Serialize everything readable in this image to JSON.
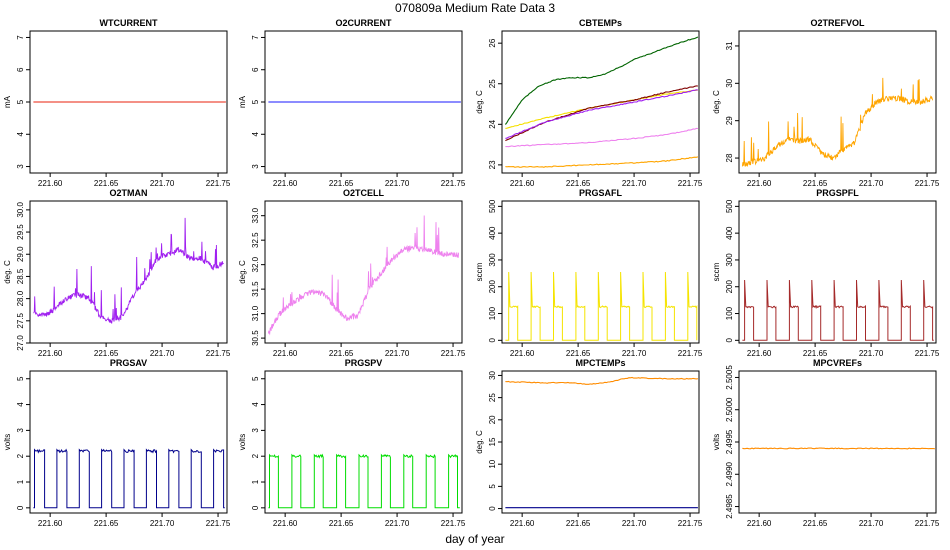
{
  "figure": {
    "title": "070809a   Medium Rate Data 3",
    "xlabel": "day of year"
  },
  "chart_data": [
    {
      "type": "line",
      "title": "WTCURRENT",
      "ylabel": "mA",
      "xlim": [
        221.582,
        221.758
      ],
      "ylim": [
        2.8,
        7.2
      ],
      "xticks": [
        221.6,
        221.65,
        221.7,
        221.75
      ],
      "yticks": [
        3,
        4,
        5,
        6,
        7
      ],
      "series": [
        {
          "name": "WTCURRENT",
          "color": "#e8200c",
          "x": [
            221.585,
            221.757
          ],
          "y": [
            5.0,
            5.0
          ]
        }
      ]
    },
    {
      "type": "line",
      "title": "O2CURRENT",
      "ylabel": "mA",
      "xlim": [
        221.582,
        221.758
      ],
      "ylim": [
        2.8,
        7.2
      ],
      "xticks": [
        221.6,
        221.65,
        221.7,
        221.75
      ],
      "yticks": [
        3,
        4,
        5,
        6,
        7
      ],
      "series": [
        {
          "name": "O2CURRENT",
          "color": "#1a1aff",
          "x": [
            221.585,
            221.757
          ],
          "y": [
            5.0,
            5.0
          ]
        }
      ]
    },
    {
      "type": "line",
      "title": "CBTEMPs",
      "ylabel": "deg. C",
      "xlim": [
        221.582,
        221.758
      ],
      "ylim": [
        22.8,
        26.3
      ],
      "xticks": [
        221.6,
        221.65,
        221.7,
        221.75
      ],
      "yticks": [
        23.0,
        24.0,
        25.0,
        26.0
      ],
      "series": [
        {
          "name": "green",
          "color": "#006400",
          "x": [
            221.585,
            221.6,
            221.615,
            221.63,
            221.645,
            221.66,
            221.675,
            221.69,
            221.7,
            221.715,
            221.73,
            221.745,
            221.757
          ],
          "y": [
            24.0,
            24.6,
            24.95,
            25.1,
            25.15,
            25.15,
            25.25,
            25.45,
            25.6,
            25.75,
            25.9,
            26.05,
            26.15
          ]
        },
        {
          "name": "yellow",
          "color": "#f5e000",
          "x": [
            221.585,
            221.62,
            221.66,
            221.7,
            221.73,
            221.757
          ],
          "y": [
            23.9,
            24.15,
            24.4,
            24.6,
            24.75,
            24.85
          ]
        },
        {
          "name": "maroon",
          "color": "#800000",
          "x": [
            221.585,
            221.62,
            221.66,
            221.7,
            221.73,
            221.757
          ],
          "y": [
            23.6,
            24.05,
            24.4,
            24.6,
            24.8,
            24.95
          ]
        },
        {
          "name": "purple",
          "color": "#a020f0",
          "x": [
            221.585,
            221.62,
            221.66,
            221.7,
            221.73,
            221.757
          ],
          "y": [
            23.65,
            24.05,
            24.35,
            24.55,
            24.7,
            24.85
          ]
        },
        {
          "name": "violet",
          "color": "#ee82ee",
          "x": [
            221.585,
            221.62,
            221.66,
            221.7,
            221.73,
            221.757
          ],
          "y": [
            23.45,
            23.5,
            23.55,
            23.65,
            23.75,
            23.9
          ]
        },
        {
          "name": "orange",
          "color": "#ffa500",
          "x": [
            221.585,
            221.62,
            221.66,
            221.7,
            221.73,
            221.757
          ],
          "y": [
            22.95,
            22.95,
            23.0,
            23.05,
            23.1,
            23.2
          ]
        }
      ]
    },
    {
      "type": "line",
      "title": "O2TREFVOL",
      "ylabel": "deg. C",
      "xlim": [
        221.582,
        221.758
      ],
      "ylim": [
        27.6,
        31.4
      ],
      "xticks": [
        221.6,
        221.65,
        221.7,
        221.75
      ],
      "yticks": [
        28,
        29,
        30,
        31
      ],
      "series": [
        {
          "name": "O2TREFVOL",
          "color": "#ffa500",
          "x": [
            221.585,
            221.595,
            221.605,
            221.615,
            221.625,
            221.635,
            221.645,
            221.655,
            221.665,
            221.675,
            221.685,
            221.695,
            221.705,
            221.715,
            221.725,
            221.735,
            221.745,
            221.755
          ],
          "y": [
            27.8,
            27.9,
            28.0,
            28.3,
            28.5,
            28.45,
            28.5,
            28.15,
            28.0,
            28.2,
            28.4,
            29.2,
            29.5,
            29.6,
            29.6,
            29.5,
            29.5,
            29.6
          ]
        }
      ]
    },
    {
      "type": "line",
      "title": "O2TMAN",
      "ylabel": "deg. C",
      "xlim": [
        221.582,
        221.758
      ],
      "ylim": [
        27.0,
        30.2
      ],
      "xticks": [
        221.6,
        221.65,
        221.7,
        221.75
      ],
      "yticks": [
        27.0,
        27.5,
        28.0,
        28.5,
        29.0,
        29.5,
        30.0
      ],
      "series": [
        {
          "name": "O2TMAN",
          "color": "#a020f0",
          "x": [
            221.585,
            221.595,
            221.605,
            221.615,
            221.625,
            221.635,
            221.645,
            221.655,
            221.665,
            221.675,
            221.685,
            221.695,
            221.705,
            221.715,
            221.725,
            221.735,
            221.745,
            221.755
          ],
          "y": [
            27.7,
            27.6,
            27.8,
            28.0,
            28.1,
            28.0,
            27.6,
            27.5,
            27.6,
            28.1,
            28.4,
            28.9,
            29.0,
            29.1,
            28.9,
            28.9,
            28.7,
            28.8
          ]
        }
      ]
    },
    {
      "type": "line",
      "title": "O2TCELL",
      "ylabel": "deg. C",
      "xlim": [
        221.582,
        221.758
      ],
      "ylim": [
        30.4,
        33.3
      ],
      "xticks": [
        221.6,
        221.65,
        221.7,
        221.75
      ],
      "yticks": [
        30.5,
        31.0,
        31.5,
        32.0,
        32.5,
        33.0
      ],
      "series": [
        {
          "name": "O2TCELL",
          "color": "#ee82ee",
          "x": [
            221.585,
            221.595,
            221.605,
            221.615,
            221.625,
            221.635,
            221.645,
            221.655,
            221.665,
            221.675,
            221.685,
            221.695,
            221.705,
            221.715,
            221.725,
            221.735,
            221.745,
            221.755
          ],
          "y": [
            30.6,
            31.0,
            31.2,
            31.35,
            31.45,
            31.4,
            31.1,
            30.9,
            30.95,
            31.5,
            31.8,
            32.1,
            32.3,
            32.35,
            32.3,
            32.25,
            32.2,
            32.2
          ]
        }
      ]
    },
    {
      "type": "line",
      "title": "PRGSAFL",
      "ylabel": "sccm",
      "xlim": [
        221.582,
        221.758
      ],
      "ylim": [
        -10,
        520
      ],
      "xticks": [
        221.6,
        221.65,
        221.7,
        221.75
      ],
      "yticks": [
        0,
        100,
        200,
        300,
        400,
        500
      ],
      "pulse": {
        "starts": [
          221.588,
          221.608,
          221.628,
          221.648,
          221.668,
          221.688,
          221.708,
          221.728,
          221.748
        ],
        "width": 0.008,
        "high": 125,
        "spike": 255,
        "low": 0
      },
      "series": [
        {
          "name": "PRGSAFL",
          "color": "#f5e400"
        }
      ]
    },
    {
      "type": "line",
      "title": "PRGSPFL",
      "ylabel": "sccm",
      "xlim": [
        221.582,
        221.758
      ],
      "ylim": [
        -10,
        520
      ],
      "xticks": [
        221.6,
        221.65,
        221.7,
        221.75
      ],
      "yticks": [
        0,
        100,
        200,
        300,
        400,
        500
      ],
      "pulse": {
        "starts": [
          221.587,
          221.607,
          221.627,
          221.647,
          221.667,
          221.687,
          221.707,
          221.727,
          221.747
        ],
        "width": 0.008,
        "high": 125,
        "spike": 225,
        "low": 0
      },
      "series": [
        {
          "name": "PRGSPFL",
          "color": "#a52a2a"
        }
      ]
    },
    {
      "type": "line",
      "title": "PRGSAV",
      "ylabel": "volts",
      "xlim": [
        221.582,
        221.758
      ],
      "ylim": [
        -0.2,
        5.3
      ],
      "xticks": [
        221.6,
        221.65,
        221.7,
        221.75
      ],
      "yticks": [
        0,
        1,
        2,
        3,
        4,
        5
      ],
      "pulse": {
        "starts": [
          221.586,
          221.606,
          221.626,
          221.646,
          221.666,
          221.686,
          221.706,
          221.726,
          221.746
        ],
        "width": 0.009,
        "high": 2.2,
        "spike": 2.25,
        "low": 0
      },
      "series": [
        {
          "name": "PRGSAV",
          "color": "#00008b"
        }
      ]
    },
    {
      "type": "line",
      "title": "PRGSPV",
      "ylabel": "volts",
      "xlim": [
        221.582,
        221.758
      ],
      "ylim": [
        -0.2,
        5.3
      ],
      "xticks": [
        221.6,
        221.65,
        221.7,
        221.75
      ],
      "yticks": [
        0,
        1,
        2,
        3,
        4,
        5
      ],
      "pulse": {
        "starts": [
          221.586,
          221.606,
          221.626,
          221.646,
          221.666,
          221.686,
          221.706,
          221.726,
          221.746
        ],
        "width": 0.008,
        "high": 2.0,
        "spike": 2.05,
        "low": 0
      },
      "series": [
        {
          "name": "PRGSPV",
          "color": "#00dd00"
        }
      ]
    },
    {
      "type": "line",
      "title": "MPCTEMPs",
      "ylabel": "deg. C",
      "xlim": [
        221.582,
        221.758
      ],
      "ylim": [
        -1,
        31
      ],
      "xticks": [
        221.6,
        221.65,
        221.7,
        221.75
      ],
      "yticks": [
        0,
        5,
        10,
        15,
        20,
        25,
        30
      ],
      "series": [
        {
          "name": "orange",
          "color": "#ff8c00",
          "x": [
            221.585,
            221.6,
            221.62,
            221.64,
            221.66,
            221.68,
            221.69,
            221.7,
            221.72,
            221.74,
            221.757
          ],
          "y": [
            28.6,
            28.5,
            28.3,
            28.4,
            28.0,
            28.6,
            29.3,
            29.5,
            29.3,
            29.2,
            29.3
          ]
        },
        {
          "name": "navy",
          "color": "#00008b",
          "x": [
            221.585,
            221.757
          ],
          "y": [
            0.2,
            0.2
          ]
        }
      ]
    },
    {
      "type": "line",
      "title": "MPCVREFs",
      "ylabel": "volts",
      "xlim": [
        221.582,
        221.758
      ],
      "ylim": [
        2.4984,
        2.5006
      ],
      "xticks": [
        221.6,
        221.65,
        221.7,
        221.75
      ],
      "yticks": [
        2.4985,
        2.499,
        2.4995,
        2.5,
        2.5005
      ],
      "ytick_labels": [
        "2.4985",
        "2.4990",
        "2.4995",
        "2.5000",
        "2.5005"
      ],
      "series": [
        {
          "name": "MPCVREFs",
          "color": "#ff8c00",
          "x": [
            221.585,
            221.62,
            221.66,
            221.7,
            221.73,
            221.757
          ],
          "y": [
            2.4994,
            2.4994,
            2.4994,
            2.4994,
            2.4994,
            2.4994
          ]
        }
      ]
    }
  ]
}
